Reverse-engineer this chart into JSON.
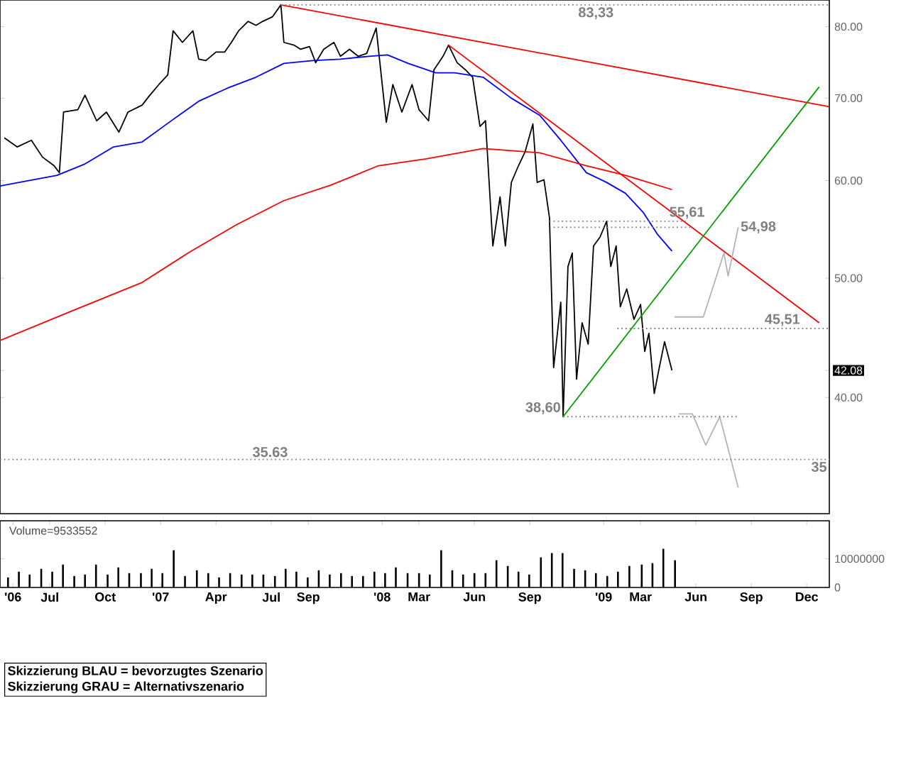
{
  "chart_data": [
    {
      "type": "line",
      "xlim": [
        "2006-04-10",
        "2010-01-08"
      ],
      "ylim": [
        32.2,
        84.1
      ],
      "log": true,
      "tick_labels": "y",
      "yticks": [
        {
          "value": 40,
          "label": "40.00"
        },
        {
          "value": 42.08,
          "label": "42.08"
        },
        {
          "value": 50,
          "label": "50.00"
        },
        {
          "value": 60,
          "label": "60.00"
        },
        {
          "value": 70,
          "label": "70.00"
        },
        {
          "value": 80,
          "label": "80.00"
        }
      ],
      "series": [
        {
          "color": "#000000",
          "x": [
            "2006-04-17",
            "2006-05-08",
            "2006-06-01",
            "2006-06-19",
            "2006-07-08",
            "2006-07-17",
            "2006-07-24",
            "2006-08-17",
            "2006-08-29",
            "2006-09-17",
            "2006-10-03",
            "2006-10-24",
            "2006-11-08",
            "2006-12-01",
            "2006-12-13",
            "2006-12-29",
            "2007-01-13",
            "2007-01-22",
            "2007-02-06",
            "2007-02-22",
            "2007-03-03",
            "2007-03-15",
            "2007-04-01",
            "2007-04-15",
            "2007-04-26",
            "2007-05-08",
            "2007-05-24",
            "2007-06-06",
            "2007-06-17",
            "2007-07-03",
            "2007-07-17",
            "2007-07-22",
            "2007-08-08",
            "2007-08-19",
            "2007-09-03",
            "2007-09-13",
            "2007-09-26",
            "2007-10-13",
            "2007-10-24",
            "2007-11-08",
            "2007-11-22",
            "2007-12-06",
            "2007-12-22",
            "2008-01-08",
            "2008-01-19",
            "2008-02-03",
            "2008-02-19",
            "2008-03-01",
            "2008-03-17",
            "2008-03-26",
            "2008-04-10",
            "2008-04-19",
            "2008-05-03",
            "2008-05-17",
            "2008-05-29",
            "2008-06-10",
            "2008-06-19",
            "2008-07-01",
            "2008-07-13",
            "2008-07-22",
            "2008-08-01",
            "2008-08-13",
            "2008-08-24",
            "2008-09-06",
            "2008-09-13",
            "2008-09-24",
            "2008-10-03",
            "2008-10-10",
            "2008-10-22",
            "2008-10-26",
            "2008-11-03",
            "2008-11-10",
            "2008-11-17",
            "2008-11-26",
            "2008-12-06",
            "2008-12-15",
            "2008-12-26",
            "2009-01-06",
            "2009-01-13",
            "2009-01-22",
            "2009-01-29",
            "2009-02-08",
            "2009-02-19",
            "2009-03-01",
            "2009-03-08",
            "2009-03-15",
            "2009-03-24",
            "2009-04-01",
            "2009-04-10",
            "2009-04-22"
          ],
          "values": [
            65.0,
            63.9,
            64.7,
            62.7,
            61.7,
            60.9,
            68.2,
            68.5,
            70.4,
            67.1,
            68.2,
            65.7,
            68.2,
            69.1,
            70.3,
            71.8,
            73.1,
            79.4,
            77.7,
            79.4,
            75.3,
            75.1,
            76.3,
            76.3,
            77.7,
            79.4,
            80.8,
            80.2,
            80.8,
            81.5,
            83.33,
            77.7,
            77.3,
            76.7,
            77.1,
            74.8,
            76.7,
            77.7,
            75.7,
            76.7,
            75.7,
            76.1,
            79.8,
            66.9,
            71.8,
            68.2,
            71.8,
            68.5,
            67.1,
            73.8,
            75.7,
            77.3,
            74.8,
            73.8,
            72.8,
            66.4,
            67.1,
            53.1,
            58.2,
            53.1,
            59.8,
            61.7,
            63.3,
            66.7,
            59.8,
            60.1,
            56.0,
            42.3,
            47.8,
            38.6,
            51.1,
            52.4,
            41.4,
            46.0,
            44.2,
            53.1,
            54.0,
            55.61,
            51.1,
            53.1,
            47.4,
            49.0,
            46.3,
            47.6,
            43.6,
            45.1,
            40.3,
            42.2,
            44.4,
            42.08
          ]
        },
        {
          "color": "#0000ff",
          "x": [
            "2006-04-10",
            "2006-07-13",
            "2006-08-29",
            "2006-10-15",
            "2006-12-01",
            "2007-01-17",
            "2007-03-03",
            "2007-04-19",
            "2007-06-06",
            "2007-07-22",
            "2007-09-08",
            "2007-10-24",
            "2007-12-10",
            "2008-01-10",
            "2008-02-13",
            "2008-03-29",
            "2008-04-29",
            "2008-06-15",
            "2008-08-01",
            "2008-09-17",
            "2008-10-22",
            "2008-12-03",
            "2009-01-06",
            "2009-02-06",
            "2009-03-06",
            "2009-03-29",
            "2009-04-22"
          ],
          "values": [
            59.4,
            60.6,
            61.9,
            63.9,
            64.5,
            67.0,
            69.6,
            71.3,
            72.8,
            74.7,
            75.1,
            75.3,
            75.7,
            75.9,
            74.7,
            73.4,
            73.4,
            72.8,
            70.0,
            67.8,
            64.7,
            60.9,
            59.8,
            58.6,
            56.5,
            54.3,
            52.6
          ]
        },
        {
          "color": "#ff0000",
          "x": [
            "2006-04-10",
            "2006-08-06",
            "2006-12-01",
            "2007-02-17",
            "2007-05-06",
            "2007-07-22",
            "2007-10-08",
            "2007-12-26",
            "2008-03-13",
            "2008-06-15",
            "2008-09-17",
            "2008-12-03",
            "2009-02-06",
            "2009-04-22"
          ],
          "values": [
            44.5,
            47.0,
            49.6,
            52.5,
            55.3,
            57.8,
            59.5,
            61.7,
            62.5,
            63.7,
            63.2,
            61.7,
            60.6,
            59.0
          ]
        },
        {
          "color": "#ff0000",
          "x": [
            "2007-07-17",
            "2010-01-08"
          ],
          "values": [
            83.33,
            68.9
          ]
        },
        {
          "color": "#ff0000",
          "x": [
            "2008-04-19",
            "2009-12-22"
          ],
          "values": [
            77.3,
            46.0
          ]
        },
        {
          "color": "#00a000",
          "x": [
            "2008-10-26",
            "2009-12-22"
          ],
          "values": [
            38.6,
            71.5
          ]
        },
        {
          "color": "#b4b4b4",
          "x": [
            "2009-04-26",
            "2009-06-13",
            "2009-07-17",
            "2009-07-24",
            "2009-08-10"
          ],
          "values": [
            46.5,
            46.5,
            52.4,
            50.2,
            54.98
          ]
        },
        {
          "color": "#b4b4b4",
          "x": [
            "2009-05-03",
            "2009-05-26",
            "2009-06-17",
            "2009-07-10",
            "2009-08-10"
          ],
          "values": [
            38.8,
            38.8,
            36.6,
            38.6,
            33.8
          ]
        },
        {
          "color": "#808080",
          "line_style": "dotted",
          "x": [
            "2007-07-17",
            "2010-01-08"
          ],
          "values": [
            83.33,
            83.33
          ]
        },
        {
          "color": "#808080",
          "line_style": "dotted",
          "x": [
            "2008-10-03",
            "2009-05-15"
          ],
          "values": [
            55.61,
            55.61
          ]
        },
        {
          "color": "#808080",
          "line_style": "dotted",
          "x": [
            "2008-10-10",
            "2009-05-24"
          ],
          "values": [
            54.98,
            54.98
          ]
        },
        {
          "color": "#808080",
          "line_style": "dotted",
          "x": [
            "2009-01-24",
            "2010-01-08"
          ],
          "values": [
            45.51,
            45.51
          ]
        },
        {
          "color": "#808080",
          "line_style": "dotted",
          "x": [
            "2008-10-26",
            "2009-08-10"
          ],
          "values": [
            38.6,
            38.6
          ]
        },
        {
          "color": "#808080",
          "line_style": "dotted",
          "x": [
            "2006-04-10",
            "2010-01-08"
          ],
          "values": [
            35.63,
            35.63
          ]
        }
      ],
      "annotations": [
        {
          "text": "83,33",
          "x": "2008-12-19",
          "y": 83.33
        },
        {
          "text": "55,61",
          "x": "2009-05-17",
          "y": 55.61
        },
        {
          "text": "54,98",
          "x": "2009-08-10",
          "y": 54.98
        },
        {
          "text": "45,51",
          "x": "2009-10-22",
          "y": 45.51
        },
        {
          "text": "38,60",
          "x": "2008-10-26",
          "y": 38.6
        },
        {
          "text": "35.63",
          "x": "2007-06-29",
          "y": 35.63
        },
        {
          "text": "35",
          "x": "2010-01-08",
          "y": 35.63
        },
        "Skizzierung BLAU = bevorzugtes Szenario",
        "Skizzierung GRAU = Alternativszenario"
      ]
    },
    {
      "type": "bar",
      "title": "Volume=9533552",
      "color": "#000000",
      "xlim": [
        "2006-04-10",
        "2010-01-08"
      ],
      "ylim": [
        0,
        23300000
      ],
      "yticks": [
        0,
        10000000
      ],
      "xticks": [
        {
          "value": "2006-05-01",
          "label": "'06"
        },
        {
          "value": "2006-07-01",
          "label": "Jul"
        },
        {
          "value": "2006-10-01",
          "label": "Oct"
        },
        {
          "value": "2007-01-01",
          "label": "'07"
        },
        {
          "value": "2007-04-01",
          "label": "Apr"
        },
        {
          "value": "2007-07-01",
          "label": "Jul"
        },
        {
          "value": "2007-09-01",
          "label": "Sep"
        },
        {
          "value": "2008-01-01",
          "label": "'08"
        },
        {
          "value": "2008-03-01",
          "label": "Mar"
        },
        {
          "value": "2008-06-01",
          "label": "Jun"
        },
        {
          "value": "2008-09-01",
          "label": "Sep"
        },
        {
          "value": "2009-01-01",
          "label": "'09"
        },
        {
          "value": "2009-03-01",
          "label": "Mar"
        },
        {
          "value": "2009-06-01",
          "label": "Jun"
        },
        {
          "value": "2009-09-01",
          "label": "Sep"
        },
        {
          "value": "2009-12-01",
          "label": "Dec"
        }
      ],
      "x": [
        "2006-04-23",
        "2006-05-11",
        "2006-05-29",
        "2006-06-17",
        "2006-07-05",
        "2006-07-23",
        "2006-08-11",
        "2006-08-29",
        "2006-09-16",
        "2006-10-05",
        "2006-10-23",
        "2006-11-10",
        "2006-11-29",
        "2006-12-17",
        "2007-01-04",
        "2007-01-23",
        "2007-02-10",
        "2007-02-28",
        "2007-03-19",
        "2007-04-06",
        "2007-04-24",
        "2007-05-13",
        "2007-05-31",
        "2007-06-18",
        "2007-07-07",
        "2007-07-25",
        "2007-08-12",
        "2007-08-31",
        "2007-09-18",
        "2007-10-06",
        "2007-10-25",
        "2007-11-12",
        "2007-11-30",
        "2007-12-19",
        "2008-01-06",
        "2008-01-24",
        "2008-02-12",
        "2008-03-01",
        "2008-03-19",
        "2008-04-07",
        "2008-04-25",
        "2008-05-13",
        "2008-06-01",
        "2008-06-19",
        "2008-07-07",
        "2008-07-26",
        "2008-08-13",
        "2008-08-31",
        "2008-09-19",
        "2008-10-07",
        "2008-10-25",
        "2008-11-13",
        "2008-12-01",
        "2008-12-19",
        "2009-01-07",
        "2009-01-25",
        "2009-02-12",
        "2009-03-03",
        "2009-03-21",
        "2009-04-08",
        "2009-04-27"
      ],
      "values": [
        3500000,
        5500000,
        4500000,
        6500000,
        5500000,
        8000000,
        4000000,
        4500000,
        8000000,
        4500000,
        7000000,
        5000000,
        5000000,
        6500000,
        5000000,
        13000000,
        4000000,
        6000000,
        5000000,
        3500000,
        5000000,
        4500000,
        4500000,
        4500000,
        4000000,
        6500000,
        5500000,
        3500000,
        6000000,
        4500000,
        5000000,
        4000000,
        4000000,
        5500000,
        5000000,
        7000000,
        5000000,
        5000000,
        4500000,
        13000000,
        6000000,
        4500000,
        5000000,
        5000000,
        9500000,
        7500000,
        5500000,
        4500000,
        10500000,
        12000000,
        12000000,
        6500000,
        6000000,
        5000000,
        4000000,
        5500000,
        7500000,
        8000000,
        8500000,
        13500000,
        9500000
      ]
    }
  ]
}
